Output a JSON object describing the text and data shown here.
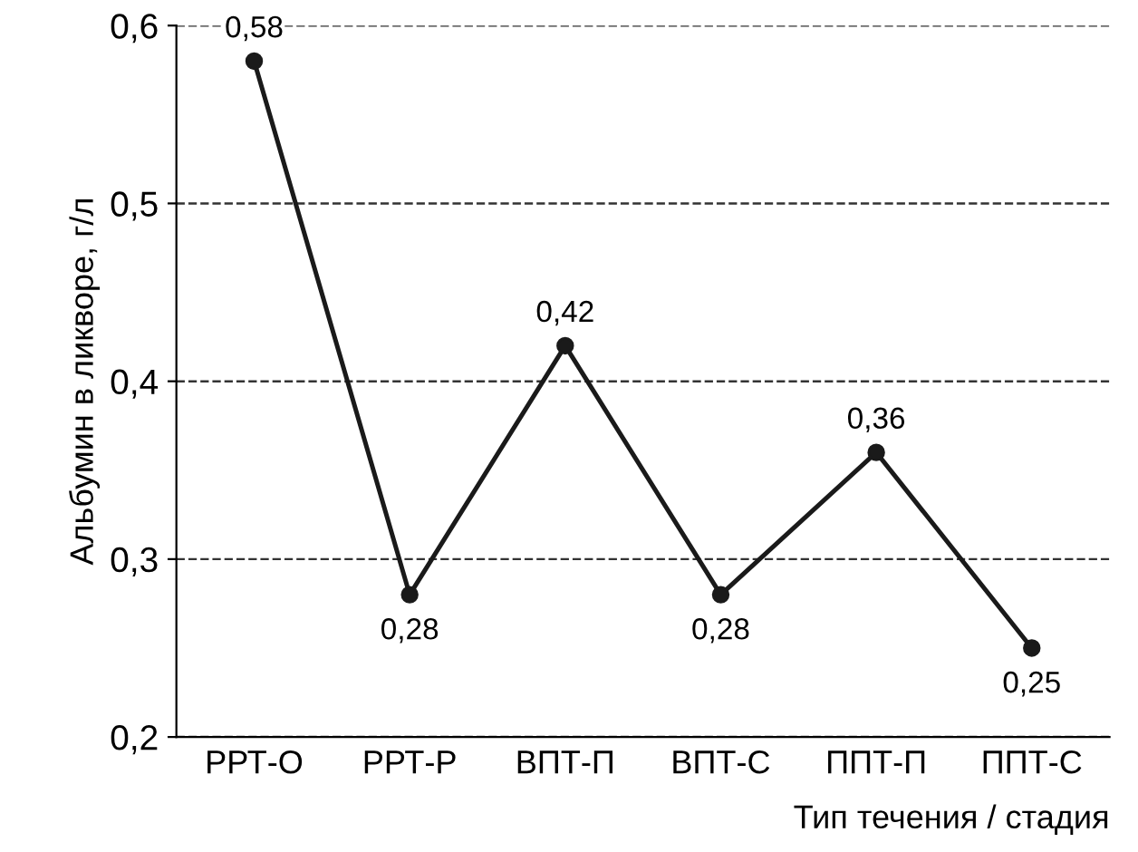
{
  "chart_data": {
    "type": "line",
    "xlabel": "Тип течения / стадия",
    "ylabel": "Альбумин в ликворе, г/л",
    "categories": [
      "РРТ-О",
      "РРТ-Р",
      "ВПТ-П",
      "ВПТ-С",
      "ППТ-П",
      "ППТ-С"
    ],
    "series": [
      {
        "color": "#1a1a1a",
        "values": [
          0.58,
          0.28,
          0.42,
          0.28,
          0.36,
          0.25
        ],
        "value_labels": [
          "0,58",
          "0,28",
          "0,42",
          "0,28",
          "0,36",
          "0,25"
        ]
      }
    ],
    "ylim": [
      0.2,
      0.6
    ],
    "yticks": [
      {
        "value": 0.2,
        "label": "0,2"
      },
      {
        "value": 0.3,
        "label": "0,3"
      },
      {
        "value": 0.4,
        "label": "0,4"
      },
      {
        "value": 0.5,
        "label": "0,5"
      },
      {
        "value": 0.6,
        "label": "0,6"
      }
    ],
    "grid": "y",
    "marker": "circle",
    "line_style": "solid",
    "legend": false
  }
}
